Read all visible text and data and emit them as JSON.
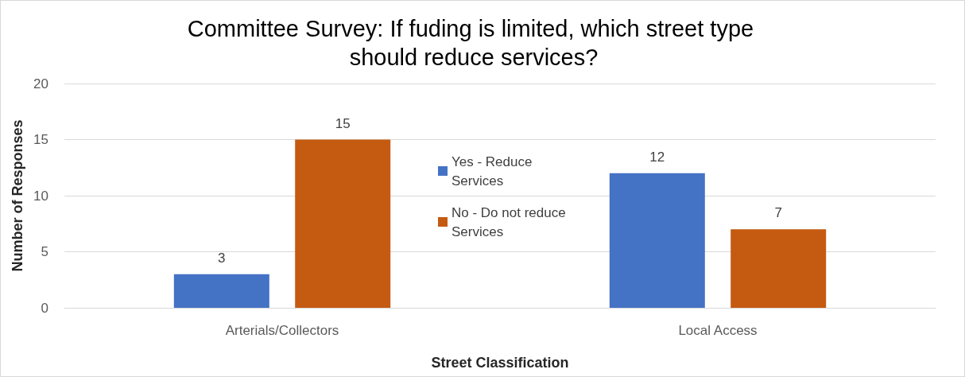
{
  "chart_data": {
    "type": "bar",
    "title": "Committee Survey: If fuding is limited, which street type should reduce services?",
    "xlabel": "Street Classification",
    "ylabel": "Number of Responses",
    "categories": [
      "Arterials/Collectors",
      "Local Access"
    ],
    "series": [
      {
        "name": "Yes - Reduce Services",
        "color": "#4472c4",
        "values": [
          3,
          12
        ]
      },
      {
        "name": "No - Do not reduce Services",
        "color": "#c55a11",
        "values": [
          15,
          7
        ]
      }
    ],
    "ylim": [
      0,
      20
    ],
    "yticks": [
      0,
      5,
      10,
      15,
      20
    ],
    "grid": "y",
    "legend": "center",
    "data_labels": true
  }
}
